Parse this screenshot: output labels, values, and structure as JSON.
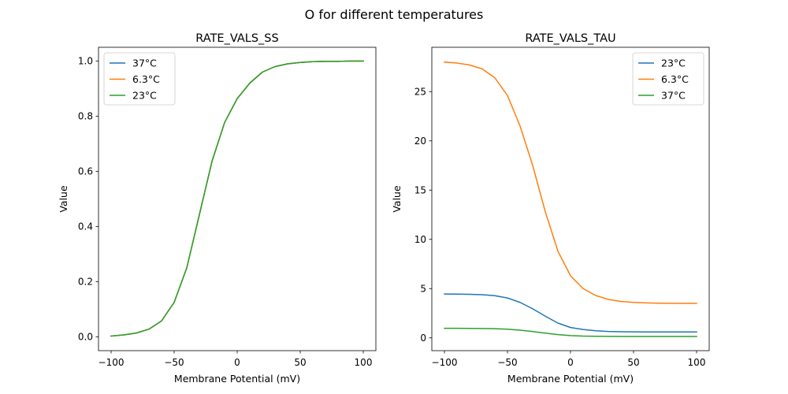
{
  "suptitle": "O for different temperatures",
  "chart_data": [
    {
      "type": "line",
      "title": "RATE_VALS_SS",
      "xlabel": "Membrane Potential (mV)",
      "ylabel": "Value",
      "xlim": [
        -110,
        110
      ],
      "ylim": [
        -0.05,
        1.05
      ],
      "xticks": [
        -100,
        -50,
        0,
        50,
        100
      ],
      "xtick_labels": [
        "−100",
        "−50",
        "0",
        "50",
        "100"
      ],
      "yticks": [
        0.0,
        0.2,
        0.4,
        0.6,
        0.8,
        1.0
      ],
      "ytick_labels": [
        "0.0",
        "0.2",
        "0.4",
        "0.6",
        "0.8",
        "1.0"
      ],
      "grid": false,
      "legend": "top-left",
      "x": [
        -100,
        -90,
        -80,
        -70,
        -60,
        -50,
        -40,
        -30,
        -20,
        -10,
        0,
        10,
        20,
        30,
        40,
        50,
        60,
        70,
        80,
        90,
        100
      ],
      "series": [
        {
          "name": "37°C",
          "color": "#1f77b4",
          "values": [
            0.003,
            0.007,
            0.014,
            0.028,
            0.058,
            0.125,
            0.25,
            0.443,
            0.636,
            0.777,
            0.864,
            0.92,
            0.96,
            0.98,
            0.99,
            0.995,
            0.998,
            0.999,
            0.999,
            1.0,
            1.0
          ]
        },
        {
          "name": "6.3°C",
          "color": "#ff7f0e",
          "values": [
            0.003,
            0.007,
            0.014,
            0.028,
            0.058,
            0.125,
            0.25,
            0.443,
            0.636,
            0.777,
            0.864,
            0.92,
            0.96,
            0.98,
            0.99,
            0.995,
            0.998,
            0.999,
            0.999,
            1.0,
            1.0
          ]
        },
        {
          "name": "23°C",
          "color": "#2ca02c",
          "values": [
            0.003,
            0.007,
            0.014,
            0.028,
            0.058,
            0.125,
            0.25,
            0.443,
            0.636,
            0.777,
            0.864,
            0.92,
            0.96,
            0.98,
            0.99,
            0.995,
            0.998,
            0.999,
            0.999,
            1.0,
            1.0
          ]
        }
      ]
    },
    {
      "type": "line",
      "title": "RATE_VALS_TAU",
      "xlabel": "Membrane Potential (mV)",
      "ylabel": "Value",
      "xlim": [
        -110,
        110
      ],
      "ylim": [
        -1.3,
        29.5
      ],
      "xticks": [
        -100,
        -50,
        0,
        50,
        100
      ],
      "xtick_labels": [
        "−100",
        "−50",
        "0",
        "50",
        "100"
      ],
      "yticks": [
        0,
        5,
        10,
        15,
        20,
        25
      ],
      "ytick_labels": [
        "0",
        "5",
        "10",
        "15",
        "20",
        "25"
      ],
      "grid": false,
      "legend": "top-right",
      "x": [
        -100,
        -90,
        -80,
        -70,
        -60,
        -50,
        -40,
        -30,
        -20,
        -10,
        0,
        10,
        20,
        30,
        40,
        50,
        60,
        70,
        80,
        90,
        100
      ],
      "series": [
        {
          "name": "23°C",
          "color": "#1f77b4",
          "values": [
            4.45,
            4.44,
            4.42,
            4.38,
            4.28,
            4.05,
            3.6,
            2.95,
            2.2,
            1.5,
            1.05,
            0.85,
            0.72,
            0.65,
            0.62,
            0.61,
            0.6,
            0.6,
            0.6,
            0.6,
            0.6
          ]
        },
        {
          "name": "6.3°C",
          "color": "#ff7f0e",
          "values": [
            28.0,
            27.9,
            27.7,
            27.3,
            26.4,
            24.6,
            21.5,
            17.5,
            12.8,
            8.8,
            6.3,
            5.0,
            4.3,
            3.9,
            3.7,
            3.6,
            3.55,
            3.52,
            3.51,
            3.5,
            3.5
          ]
        },
        {
          "name": "37°C",
          "color": "#2ca02c",
          "values": [
            0.97,
            0.97,
            0.96,
            0.95,
            0.93,
            0.88,
            0.78,
            0.64,
            0.48,
            0.33,
            0.23,
            0.18,
            0.16,
            0.15,
            0.14,
            0.14,
            0.14,
            0.14,
            0.14,
            0.14,
            0.14
          ]
        }
      ]
    }
  ]
}
